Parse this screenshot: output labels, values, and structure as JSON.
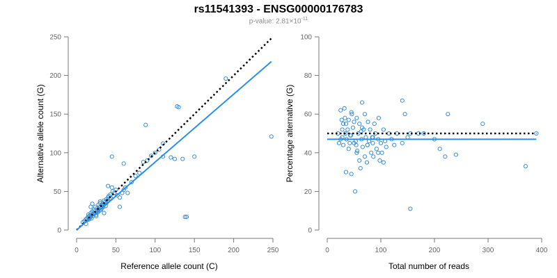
{
  "title": "rs11541393 - ENSG00000176783",
  "subtitle": {
    "prefix": "p-value: 2.81×10",
    "exponent": "-11"
  },
  "colors": {
    "points": "#3a8fd8",
    "fit": "#2b8ee8",
    "reference_line": "#000000"
  },
  "chart_data": [
    {
      "type": "scatter",
      "xlabel": "Reference allele count (C)",
      "ylabel": "Alternative allele count (G)",
      "xlim": [
        0,
        250
      ],
      "ylim": [
        0,
        250
      ],
      "xticks": [
        "0",
        "50",
        "100",
        "150",
        "200",
        "250"
      ],
      "yticks": [
        "0",
        "50",
        "100",
        "150",
        "200",
        "250"
      ],
      "points": {
        "x": [
          8,
          10,
          12,
          13,
          14,
          15,
          15,
          16,
          16,
          17,
          18,
          18,
          19,
          20,
          20,
          21,
          22,
          22,
          23,
          24,
          24,
          25,
          26,
          26,
          27,
          28,
          28,
          29,
          30,
          30,
          31,
          32,
          32,
          33,
          34,
          35,
          35,
          36,
          37,
          38,
          38,
          39,
          40,
          40,
          41,
          42,
          43,
          44,
          45,
          46,
          47,
          48,
          50,
          52,
          55,
          58,
          60,
          62,
          65,
          70,
          75,
          80,
          85,
          90,
          95,
          100,
          105,
          110,
          120,
          125,
          130,
          135,
          140,
          150,
          190,
          248,
          45,
          40,
          30,
          60,
          88,
          128,
          138,
          110,
          55,
          35,
          25,
          20,
          18,
          12
        ],
        "y": [
          10,
          12,
          14,
          15,
          13,
          17,
          20,
          14,
          18,
          16,
          19,
          22,
          15,
          20,
          24,
          18,
          21,
          26,
          22,
          25,
          30,
          20,
          24,
          28,
          23,
          27,
          33,
          25,
          30,
          35,
          26,
          32,
          28,
          34,
          30,
          38,
          33,
          36,
          31,
          40,
          35,
          37,
          42,
          38,
          44,
          40,
          46,
          41,
          55,
          50,
          44,
          48,
          52,
          45,
          42,
          48,
          52,
          55,
          48,
          62,
          70,
          74,
          88,
          90,
          96,
          100,
          104,
          95,
          94,
          92,
          159,
          92,
          17,
          95,
          196,
          121,
          95,
          57,
          37,
          86,
          136,
          160,
          17,
          112,
          30,
          22,
          18,
          34,
          30,
          8
        ]
      },
      "reference_line": {
        "from": [
          0,
          0
        ],
        "to": [
          248,
          248
        ],
        "style": "dotted"
      },
      "fit_line": {
        "from": [
          0,
          0
        ],
        "to": [
          248,
          218
        ],
        "style": "solid"
      }
    },
    {
      "type": "scatter",
      "xlabel": "Total number of reads",
      "ylabel": "Percentage alternative (G)",
      "xlim": [
        0,
        400
      ],
      "ylim": [
        0,
        100
      ],
      "xticks": [
        "0",
        "100",
        "200",
        "300",
        "400"
      ],
      "yticks": [
        "0",
        "20",
        "40",
        "60",
        "80",
        "100"
      ],
      "points": {
        "x": [
          20,
          22,
          25,
          27,
          28,
          30,
          30,
          32,
          34,
          35,
          36,
          38,
          40,
          40,
          42,
          44,
          45,
          46,
          48,
          50,
          50,
          52,
          54,
          55,
          56,
          58,
          60,
          60,
          62,
          64,
          65,
          66,
          68,
          70,
          70,
          72,
          74,
          75,
          76,
          78,
          80,
          82,
          84,
          85,
          86,
          88,
          90,
          92,
          95,
          96,
          98,
          100,
          102,
          105,
          108,
          110,
          115,
          120,
          125,
          130,
          140,
          145,
          150,
          155,
          170,
          180,
          200,
          210,
          220,
          225,
          240,
          290,
          370,
          390,
          25,
          35,
          45,
          55,
          65,
          75,
          85,
          95,
          105,
          140,
          155,
          28,
          33,
          43,
          53,
          63
        ],
        "y": [
          50,
          45,
          62,
          57,
          48,
          44,
          55,
          63,
          50,
          30,
          47,
          52,
          42,
          57,
          45,
          49,
          29,
          60,
          53,
          45,
          56,
          20,
          44,
          58,
          41,
          50,
          36,
          55,
          32,
          47,
          66,
          43,
          52,
          38,
          60,
          48,
          35,
          44,
          56,
          46,
          52,
          40,
          48,
          45,
          38,
          55,
          50,
          42,
          47,
          58,
          36,
          45,
          40,
          52,
          46,
          43,
          50,
          47,
          44,
          50,
          67,
          60,
          48,
          11,
          50,
          50,
          47,
          42,
          38,
          60,
          39,
          55,
          33,
          50,
          47,
          55,
          61,
          40,
          53,
          44,
          48,
          40,
          35,
          45,
          50,
          52,
          58,
          49,
          46,
          51
        ]
      },
      "reference_line": {
        "from": [
          0,
          50
        ],
        "to": [
          390,
          50
        ],
        "style": "dotted"
      },
      "fit_line": {
        "from": [
          0,
          47
        ],
        "to": [
          390,
          47
        ],
        "style": "solid"
      }
    }
  ]
}
